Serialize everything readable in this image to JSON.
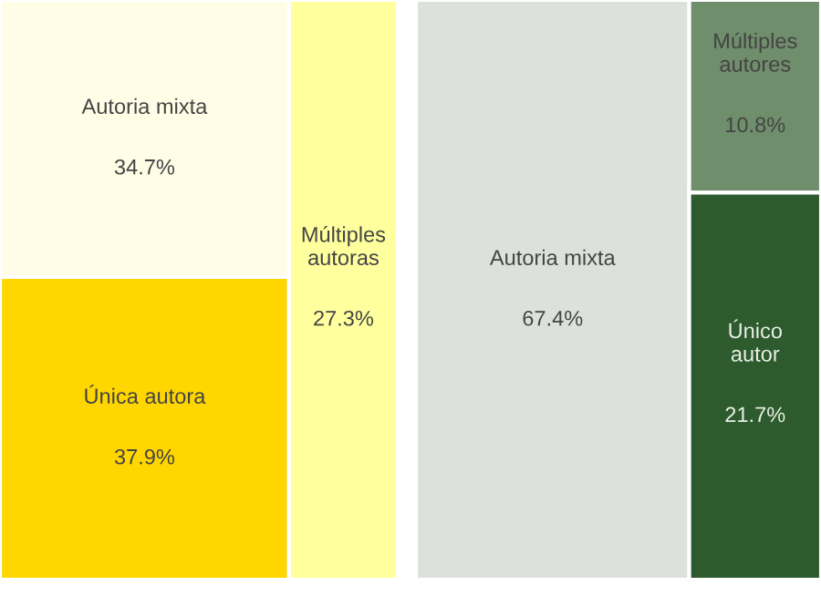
{
  "chart_data": [
    {
      "type": "other",
      "categories": [
        "Autoria mixta",
        "Única autora",
        "Múltiples autoras"
      ],
      "values": [
        34.7,
        37.9,
        27.3
      ],
      "value_labels": [
        "34.7%",
        "37.9%",
        "27.3%"
      ],
      "colors": [
        "#fffde6",
        "#ffd600",
        "#ffff9e"
      ]
    },
    {
      "type": "other",
      "categories": [
        "Autoria mixta",
        "Múltiples autores",
        "Único autor"
      ],
      "values": [
        67.4,
        10.8,
        21.7
      ],
      "value_labels": [
        "67.4%",
        "10.8%",
        "21.7%"
      ],
      "colors": [
        "#dce2db",
        "#6f8e6b",
        "#2e5b2e"
      ]
    }
  ]
}
